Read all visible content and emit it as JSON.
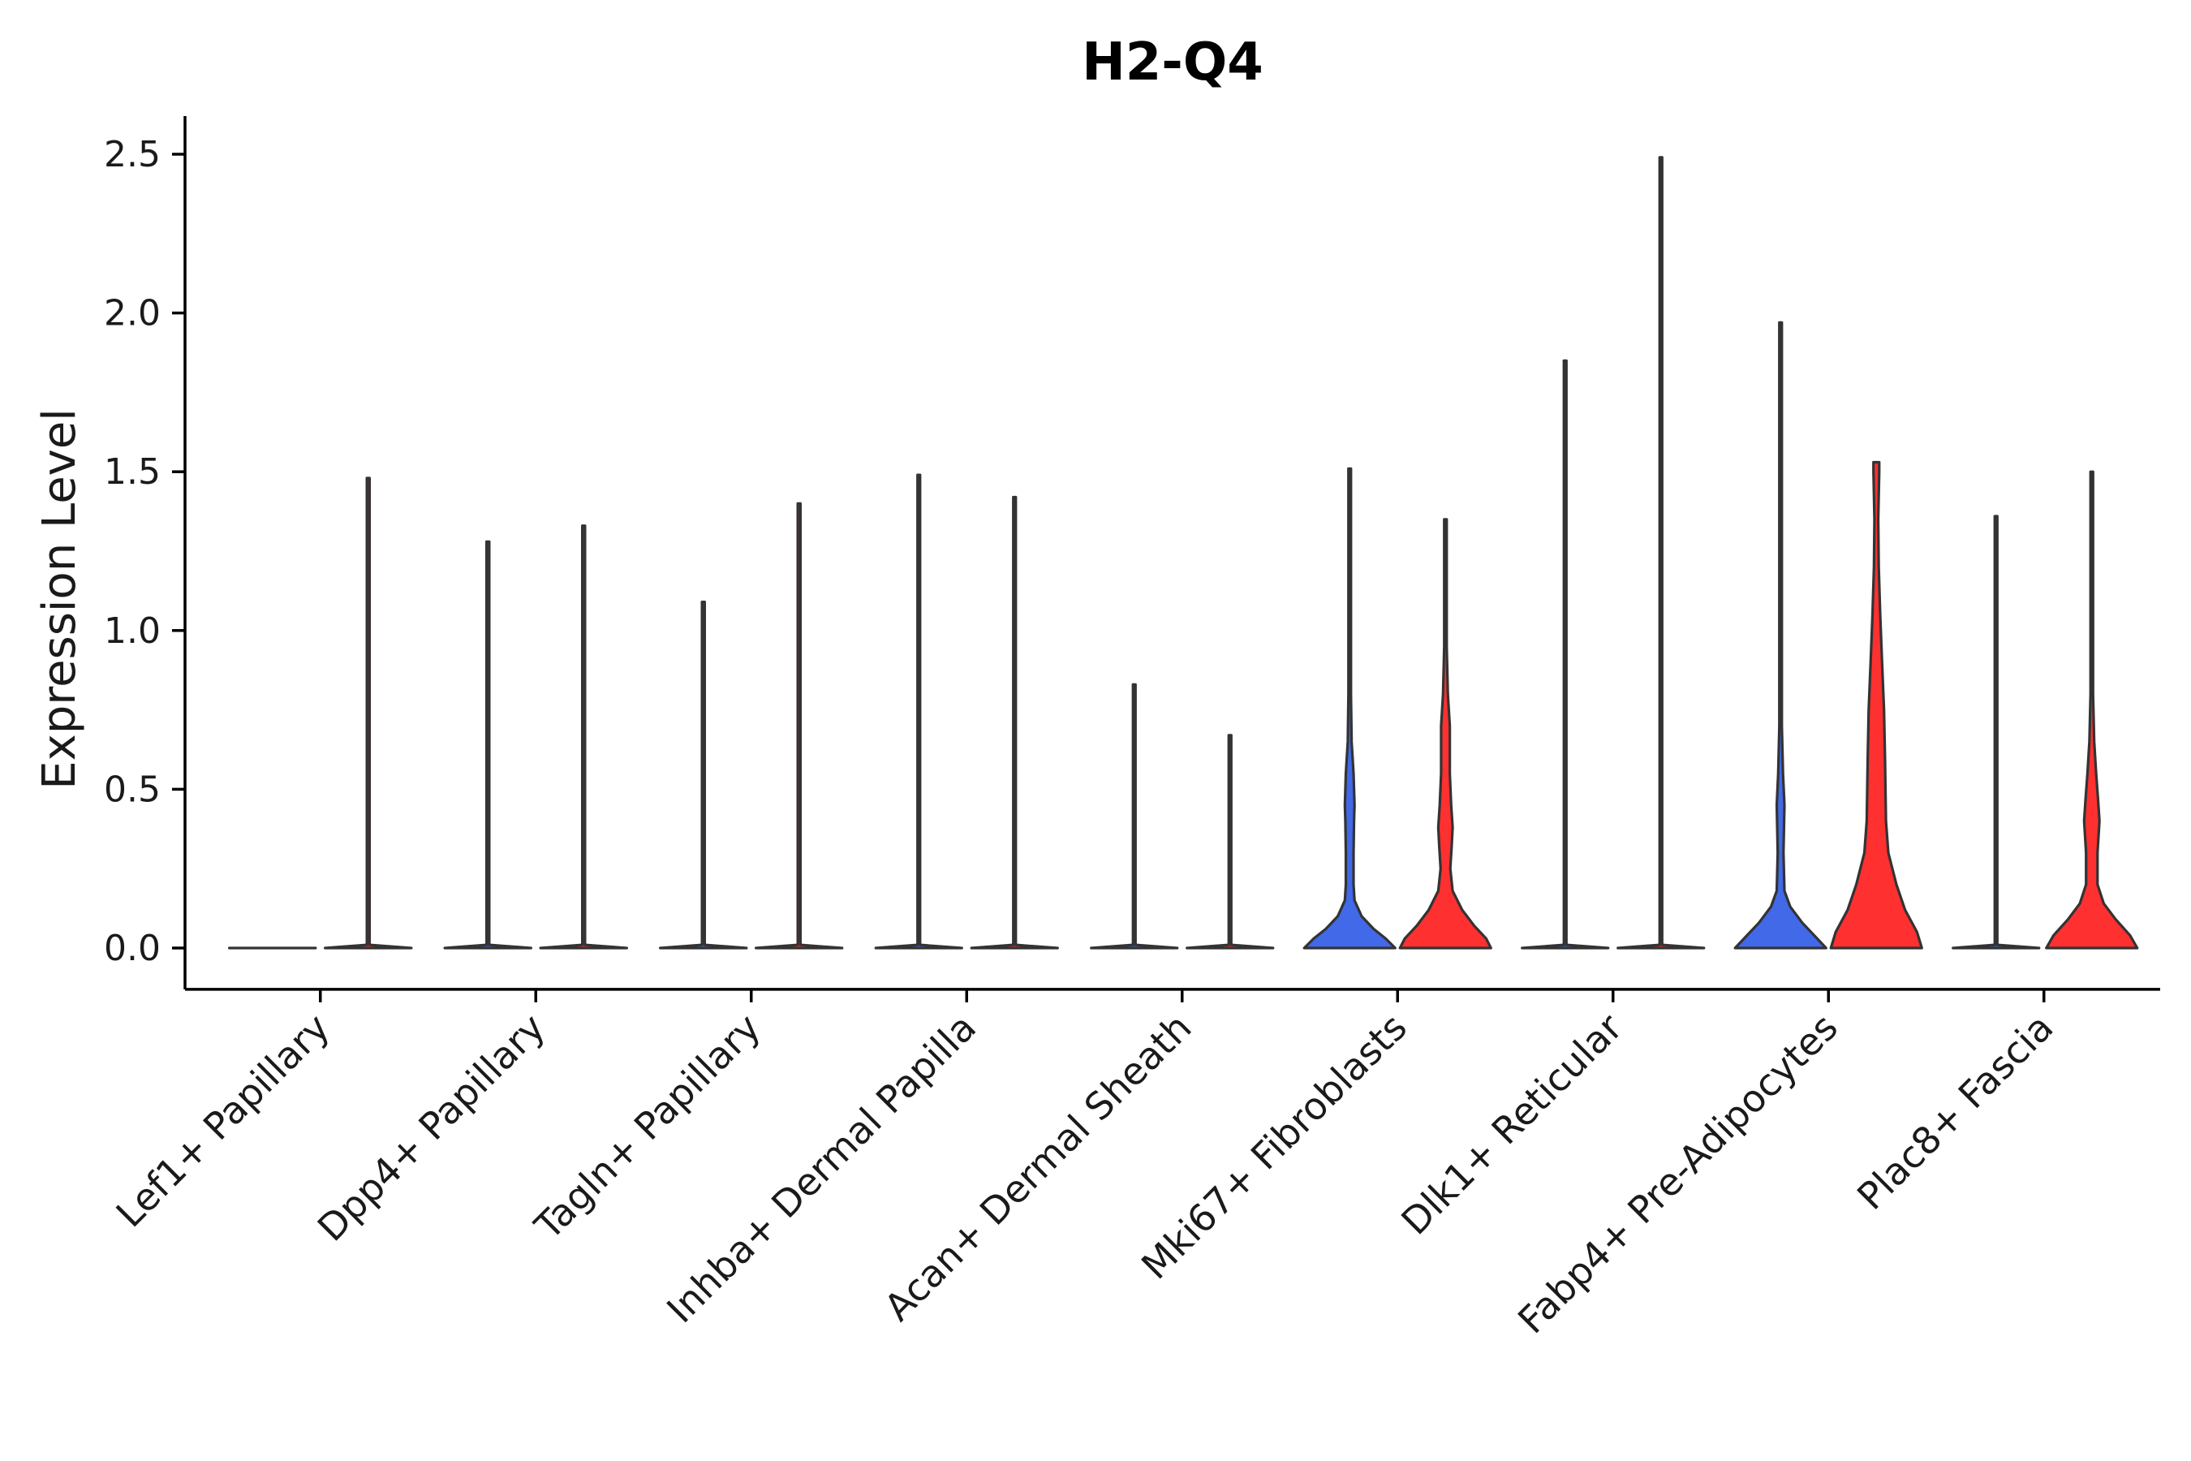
{
  "chart_data": {
    "type": "violin",
    "title": "H2-Q4",
    "xlabel": "",
    "ylabel": "Expression Level",
    "ylim": [
      -0.13,
      2.62
    ],
    "yticks": [
      0.0,
      0.5,
      1.0,
      1.5,
      2.0,
      2.5
    ],
    "ytick_labels": [
      "0.0",
      "0.5",
      "1.0",
      "1.5",
      "2.0",
      "2.5"
    ],
    "grid": false,
    "legend": "none",
    "group_colors": {
      "group_a": "#4169e8",
      "group_b": "#ff3030"
    },
    "categories": [
      "Lef1+ Papillary",
      "Dpp4+ Papillary",
      "Tagln+ Papillary",
      "Inhba+ Dermal Papilla",
      "Acan+ Dermal Sheath",
      "Mki67+ Fibroblasts",
      "Dlk1+ Reticular",
      "Fabp4+ Pre-Adipocytes",
      "Plac8+ Fascia"
    ],
    "violins": [
      {
        "category": "Lef1+ Papillary",
        "group": "group_a",
        "max": 0.0,
        "density": [
          [
            0.0,
            0.9
          ],
          [
            0.0,
            0.0
          ]
        ]
      },
      {
        "category": "Lef1+ Papillary",
        "group": "group_b",
        "max": 1.48,
        "density": [
          [
            0.0,
            0.9
          ],
          [
            0.01,
            0.01
          ],
          [
            1.48,
            0.01
          ]
        ]
      },
      {
        "category": "Dpp4+ Papillary",
        "group": "group_a",
        "max": 1.28,
        "density": [
          [
            0.0,
            0.9
          ],
          [
            0.01,
            0.01
          ],
          [
            1.28,
            0.01
          ]
        ]
      },
      {
        "category": "Dpp4+ Papillary",
        "group": "group_b",
        "max": 1.33,
        "density": [
          [
            0.0,
            0.9
          ],
          [
            0.01,
            0.01
          ],
          [
            1.33,
            0.01
          ]
        ]
      },
      {
        "category": "Tagln+ Papillary",
        "group": "group_a",
        "max": 1.09,
        "density": [
          [
            0.0,
            0.9
          ],
          [
            0.01,
            0.01
          ],
          [
            1.09,
            0.01
          ]
        ]
      },
      {
        "category": "Tagln+ Papillary",
        "group": "group_b",
        "max": 1.4,
        "density": [
          [
            0.0,
            0.9
          ],
          [
            0.01,
            0.01
          ],
          [
            1.4,
            0.01
          ]
        ]
      },
      {
        "category": "Inhba+ Dermal Papilla",
        "group": "group_a",
        "max": 1.49,
        "density": [
          [
            0.0,
            0.9
          ],
          [
            0.01,
            0.01
          ],
          [
            1.49,
            0.01
          ]
        ]
      },
      {
        "category": "Inhba+ Dermal Papilla",
        "group": "group_b",
        "max": 1.42,
        "density": [
          [
            0.0,
            0.9
          ],
          [
            0.01,
            0.01
          ],
          [
            1.42,
            0.01
          ]
        ]
      },
      {
        "category": "Acan+ Dermal Sheath",
        "group": "group_a",
        "max": 0.83,
        "density": [
          [
            0.0,
            0.9
          ],
          [
            0.01,
            0.01
          ],
          [
            0.83,
            0.01
          ]
        ]
      },
      {
        "category": "Acan+ Dermal Sheath",
        "group": "group_b",
        "max": 0.67,
        "density": [
          [
            0.0,
            0.9
          ],
          [
            0.01,
            0.01
          ],
          [
            0.67,
            0.01
          ]
        ]
      },
      {
        "category": "Mki67+ Fibroblasts",
        "group": "group_a",
        "max": 1.51,
        "density": [
          [
            0.0,
            0.95
          ],
          [
            0.03,
            0.75
          ],
          [
            0.06,
            0.5
          ],
          [
            0.1,
            0.25
          ],
          [
            0.15,
            0.1
          ],
          [
            0.2,
            0.08
          ],
          [
            0.3,
            0.08
          ],
          [
            0.4,
            0.09
          ],
          [
            0.45,
            0.1
          ],
          [
            0.55,
            0.08
          ],
          [
            0.65,
            0.04
          ],
          [
            0.8,
            0.02
          ],
          [
            1.0,
            0.01
          ],
          [
            1.51,
            0.01
          ]
        ]
      },
      {
        "category": "Mki67+ Fibroblasts",
        "group": "group_b",
        "max": 1.35,
        "density": [
          [
            0.0,
            0.95
          ],
          [
            0.03,
            0.85
          ],
          [
            0.07,
            0.6
          ],
          [
            0.12,
            0.35
          ],
          [
            0.18,
            0.15
          ],
          [
            0.25,
            0.1
          ],
          [
            0.32,
            0.13
          ],
          [
            0.38,
            0.15
          ],
          [
            0.45,
            0.12
          ],
          [
            0.55,
            0.09
          ],
          [
            0.7,
            0.09
          ],
          [
            0.8,
            0.05
          ],
          [
            0.95,
            0.02
          ],
          [
            1.1,
            0.01
          ],
          [
            1.35,
            0.01
          ]
        ]
      },
      {
        "category": "Dlk1+ Reticular",
        "group": "group_a",
        "max": 1.85,
        "density": [
          [
            0.0,
            0.9
          ],
          [
            0.01,
            0.01
          ],
          [
            1.85,
            0.01
          ]
        ]
      },
      {
        "category": "Dlk1+ Reticular",
        "group": "group_b",
        "max": 2.49,
        "density": [
          [
            0.0,
            0.9
          ],
          [
            0.01,
            0.01
          ],
          [
            2.49,
            0.01
          ]
        ]
      },
      {
        "category": "Fabp4+ Pre-Adipocytes",
        "group": "group_a",
        "max": 1.97,
        "density": [
          [
            0.0,
            0.95
          ],
          [
            0.04,
            0.7
          ],
          [
            0.08,
            0.45
          ],
          [
            0.13,
            0.2
          ],
          [
            0.18,
            0.08
          ],
          [
            0.3,
            0.06
          ],
          [
            0.45,
            0.08
          ],
          [
            0.55,
            0.05
          ],
          [
            0.7,
            0.02
          ],
          [
            0.9,
            0.01
          ],
          [
            1.97,
            0.01
          ]
        ]
      },
      {
        "category": "Fabp4+ Pre-Adipocytes",
        "group": "group_b",
        "max": 1.53,
        "density": [
          [
            0.0,
            0.95
          ],
          [
            0.05,
            0.85
          ],
          [
            0.12,
            0.6
          ],
          [
            0.2,
            0.42
          ],
          [
            0.3,
            0.25
          ],
          [
            0.4,
            0.2
          ],
          [
            0.5,
            0.19
          ],
          [
            0.6,
            0.18
          ],
          [
            0.75,
            0.16
          ],
          [
            0.9,
            0.12
          ],
          [
            1.05,
            0.08
          ],
          [
            1.2,
            0.05
          ],
          [
            1.35,
            0.04
          ],
          [
            1.5,
            0.06
          ],
          [
            1.53,
            0.06
          ]
        ]
      },
      {
        "category": "Plac8+ Fascia",
        "group": "group_a",
        "max": 1.36,
        "density": [
          [
            0.0,
            0.9
          ],
          [
            0.01,
            0.01
          ],
          [
            1.36,
            0.01
          ]
        ]
      },
      {
        "category": "Plac8+ Fascia",
        "group": "group_b",
        "max": 1.5,
        "density": [
          [
            0.0,
            0.95
          ],
          [
            0.04,
            0.8
          ],
          [
            0.09,
            0.5
          ],
          [
            0.14,
            0.25
          ],
          [
            0.2,
            0.12
          ],
          [
            0.3,
            0.12
          ],
          [
            0.4,
            0.16
          ],
          [
            0.47,
            0.13
          ],
          [
            0.55,
            0.09
          ],
          [
            0.65,
            0.05
          ],
          [
            0.8,
            0.02
          ],
          [
            1.0,
            0.01
          ],
          [
            1.5,
            0.01
          ]
        ]
      }
    ]
  }
}
